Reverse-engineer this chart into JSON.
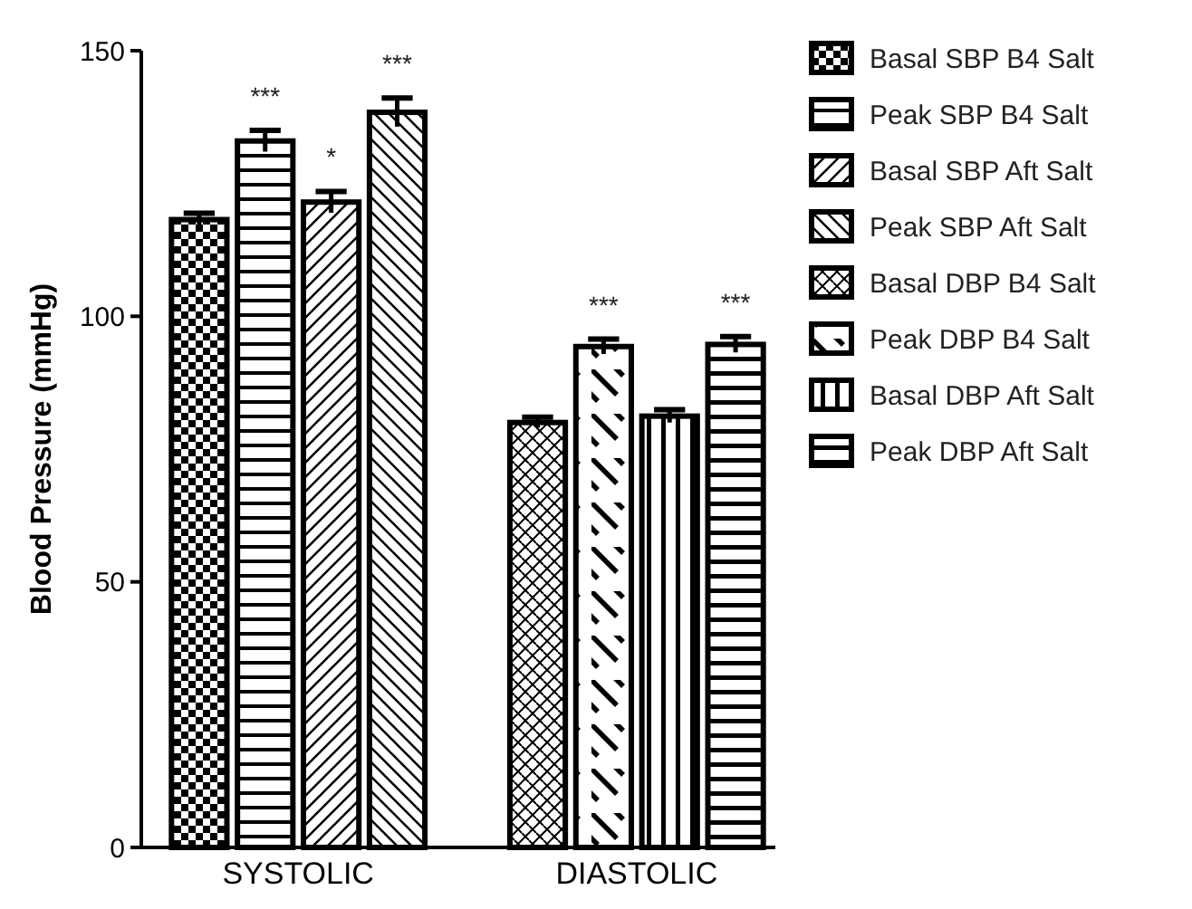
{
  "chart_data": {
    "type": "bar",
    "ylabel": "Blood Pressure (mmHg)",
    "categories": [
      "SYSTOLIC",
      "DIASTOLIC"
    ],
    "ylim": [
      0,
      150
    ],
    "yticks": [
      0,
      50,
      100,
      150
    ],
    "grid": false,
    "legend": "right",
    "series": [
      {
        "name": "Basal SBP B4 Salt",
        "color": "#000000",
        "values": [
          118.2,
          null
        ],
        "errors": [
          1.2,
          null
        ],
        "value_labels": [
          null,
          null
        ]
      },
      {
        "name": "Peak SBP B4 Salt",
        "color": "#000000",
        "values": [
          133,
          null
        ],
        "errors": [
          2,
          null
        ],
        "value_labels": [
          "***",
          null
        ]
      },
      {
        "name": "Basal SBP Aft Salt",
        "color": "#000000",
        "values": [
          121.5,
          null
        ],
        "errors": [
          2,
          null
        ],
        "value_labels": [
          "*",
          null
        ]
      },
      {
        "name": "Peak SBP Aft Salt",
        "color": "#000000",
        "values": [
          138.4,
          null
        ],
        "errors": [
          2.7,
          null
        ],
        "value_labels": [
          "***",
          null
        ]
      },
      {
        "name": "Basal DBP B4 Salt",
        "color": "#000000",
        "values": [
          null,
          80
        ],
        "errors": [
          null,
          1
        ],
        "value_labels": [
          null,
          null
        ]
      },
      {
        "name": "Peak DBP B4 Salt",
        "color": "#000000",
        "values": [
          null,
          94.3
        ],
        "errors": [
          null,
          1.4
        ],
        "value_labels": [
          null,
          "***"
        ]
      },
      {
        "name": "Basal DBP Aft Salt",
        "color": "#000000",
        "values": [
          null,
          81.2
        ],
        "errors": [
          null,
          1.2
        ],
        "value_labels": [
          null,
          null
        ]
      },
      {
        "name": "Peak DBP Aft Salt",
        "color": "#000000",
        "values": [
          null,
          94.7
        ],
        "errors": [
          null,
          1.5
        ],
        "value_labels": [
          null,
          "***"
        ]
      }
    ]
  }
}
